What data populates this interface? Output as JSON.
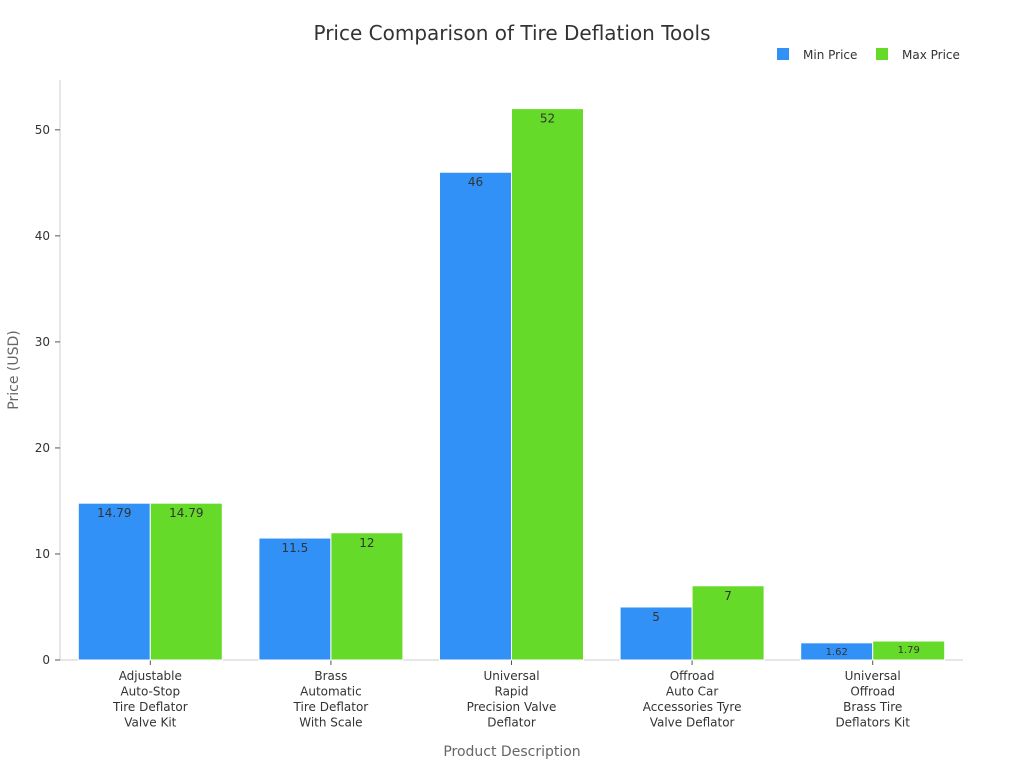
{
  "chart_data": {
    "type": "bar",
    "title": "Price Comparison of Tire Deflation Tools",
    "xlabel": "Product Description",
    "ylabel": "Price (USD)",
    "ylim": [
      0,
      54.7
    ],
    "yticks": [
      0,
      10,
      20,
      30,
      40,
      50
    ],
    "grid": false,
    "legend_position": "top-right",
    "categories": [
      [
        "Adjustable",
        "Auto-Stop",
        "Tire Deflator",
        "Valve Kit"
      ],
      [
        "Brass",
        "Automatic",
        "Tire Deflator",
        "With Scale"
      ],
      [
        "Universal",
        "Rapid",
        "Precision Valve",
        "Deflator"
      ],
      [
        "Offroad",
        "Auto Car",
        "Accessories Tyre",
        "Valve Deflator"
      ],
      [
        "Universal",
        "Offroad",
        "Brass Tire",
        "Deflators Kit"
      ]
    ],
    "series": [
      {
        "name": "Min Price",
        "color": "#3191f7",
        "values": [
          14.79,
          11.5,
          46,
          5,
          1.62
        ]
      },
      {
        "name": "Max Price",
        "color": "#66da28",
        "values": [
          14.79,
          12,
          52,
          7,
          1.79
        ]
      }
    ]
  }
}
